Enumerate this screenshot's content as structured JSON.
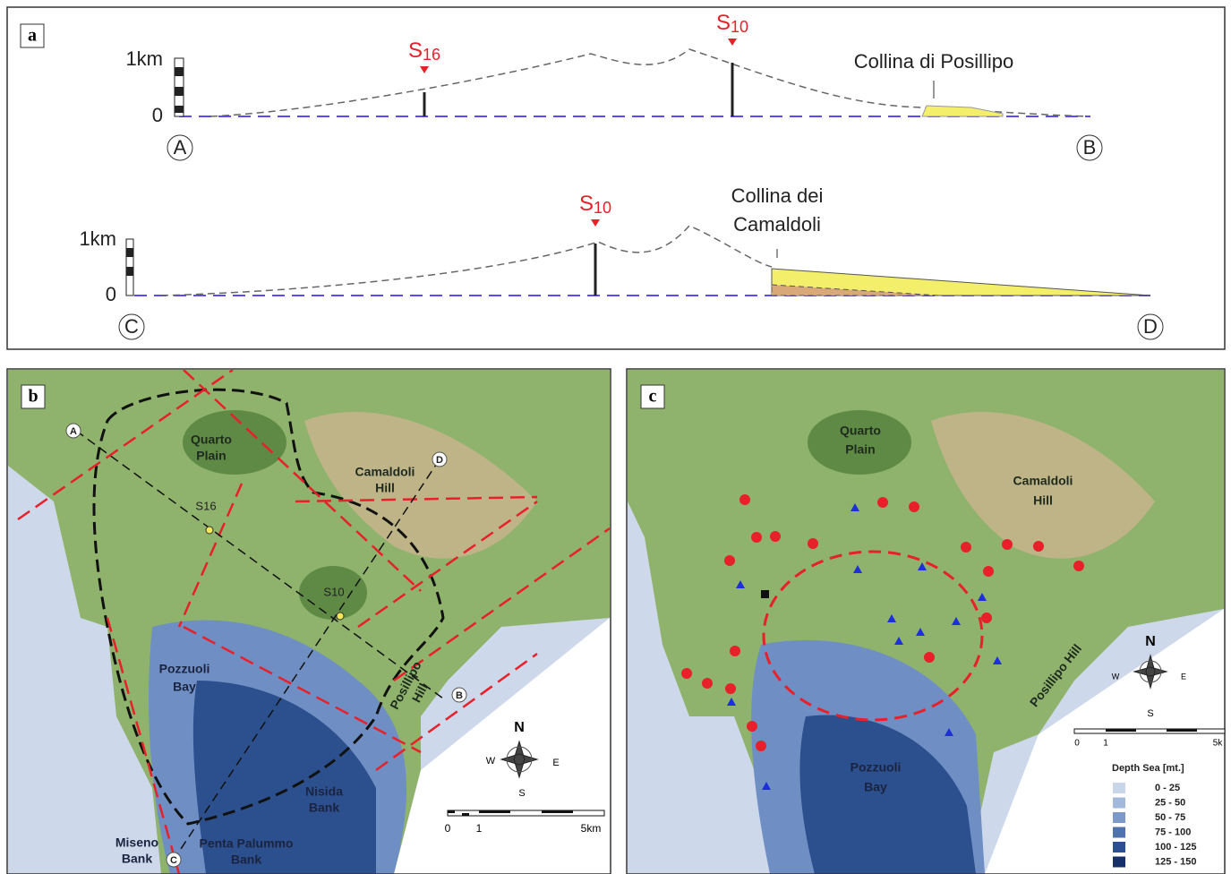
{
  "panel_a": {
    "label": "a",
    "profile_ab": {
      "scale_top": "1km",
      "scale_zero": "0",
      "start": "A",
      "end": "B",
      "s16": {
        "letter": "S",
        "index": "16"
      },
      "s10": {
        "letter": "S",
        "index": "10"
      },
      "annotation": "Collina di Posillipo"
    },
    "profile_cd": {
      "scale_top": "1km",
      "scale_zero": "0",
      "start": "C",
      "end": "D",
      "s10": {
        "letter": "S",
        "index": "10"
      },
      "annotation": [
        "Collina dei",
        "Camaldoli"
      ]
    }
  },
  "panel_b": {
    "label": "b",
    "points": [
      "A",
      "D",
      "B",
      "C"
    ],
    "quarto": [
      "Quarto",
      "Plain"
    ],
    "camaldoli": [
      "Camaldoli",
      "Hill"
    ],
    "wells": [
      "S16",
      "S10"
    ],
    "bay": [
      "Pozzuoli",
      "Bay"
    ],
    "posillipo": [
      "Posillipo",
      "Hill"
    ],
    "nisida": [
      "Nisida",
      "Bank"
    ],
    "miseno": [
      "Miseno",
      "Bank"
    ],
    "penta": [
      "Penta Palummo",
      "Bank"
    ],
    "compass": {
      "n": "N",
      "w": "W",
      "e": "E",
      "s": "S"
    },
    "scale": [
      "0",
      "1",
      "5km"
    ]
  },
  "panel_c": {
    "label": "c",
    "quarto": [
      "Quarto",
      "Plain"
    ],
    "camaldoli": [
      "Camaldoli",
      "Hill"
    ],
    "bay": [
      "Pozzuoli",
      "Bay"
    ],
    "posillipo": "Posillipo Hill",
    "compass": {
      "n": "N",
      "w": "W",
      "e": "E",
      "s": "S"
    },
    "scale": [
      "0",
      "1",
      "5k"
    ],
    "legend": {
      "title": "Depth Sea [mt.]",
      "entries": [
        {
          "label": "0 - 25",
          "color": "#c9d6ea"
        },
        {
          "label": "25 - 50",
          "color": "#a3b9dc"
        },
        {
          "label": "50 - 75",
          "color": "#7d99c9"
        },
        {
          "label": "75 - 100",
          "color": "#4f71ae"
        },
        {
          "label": "100 - 125",
          "color": "#2b4f92"
        },
        {
          "label": "125 - 150",
          "color": "#15306b"
        }
      ]
    }
  }
}
